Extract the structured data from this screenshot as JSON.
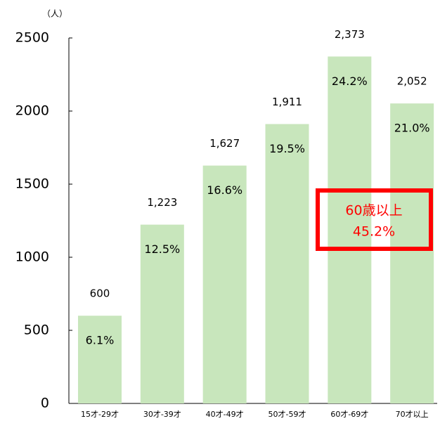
{
  "chart_data": {
    "type": "bar",
    "y_axis_label": "（人）",
    "categories": [
      "15才-29才",
      "30才-39才",
      "40才-49才",
      "50才-59才",
      "60才-69才",
      "70才以上"
    ],
    "values": [
      600,
      1223,
      1627,
      1911,
      2373,
      2052
    ],
    "value_labels": [
      "600",
      "1,223",
      "1,627",
      "1,911",
      "2,373",
      "2,052"
    ],
    "share_labels": [
      "6.1%",
      "12.5%",
      "16.6%",
      "19.5%",
      "24.2%",
      "21.0%"
    ],
    "color": "#c8e6bc",
    "ylim": [
      0,
      2500
    ],
    "yticks": [
      0,
      500,
      1000,
      1500,
      2000,
      2500
    ],
    "grid": false,
    "annotation": [
      "60歳以上",
      "45.2%"
    ],
    "annotation_color": "#ff0000"
  }
}
